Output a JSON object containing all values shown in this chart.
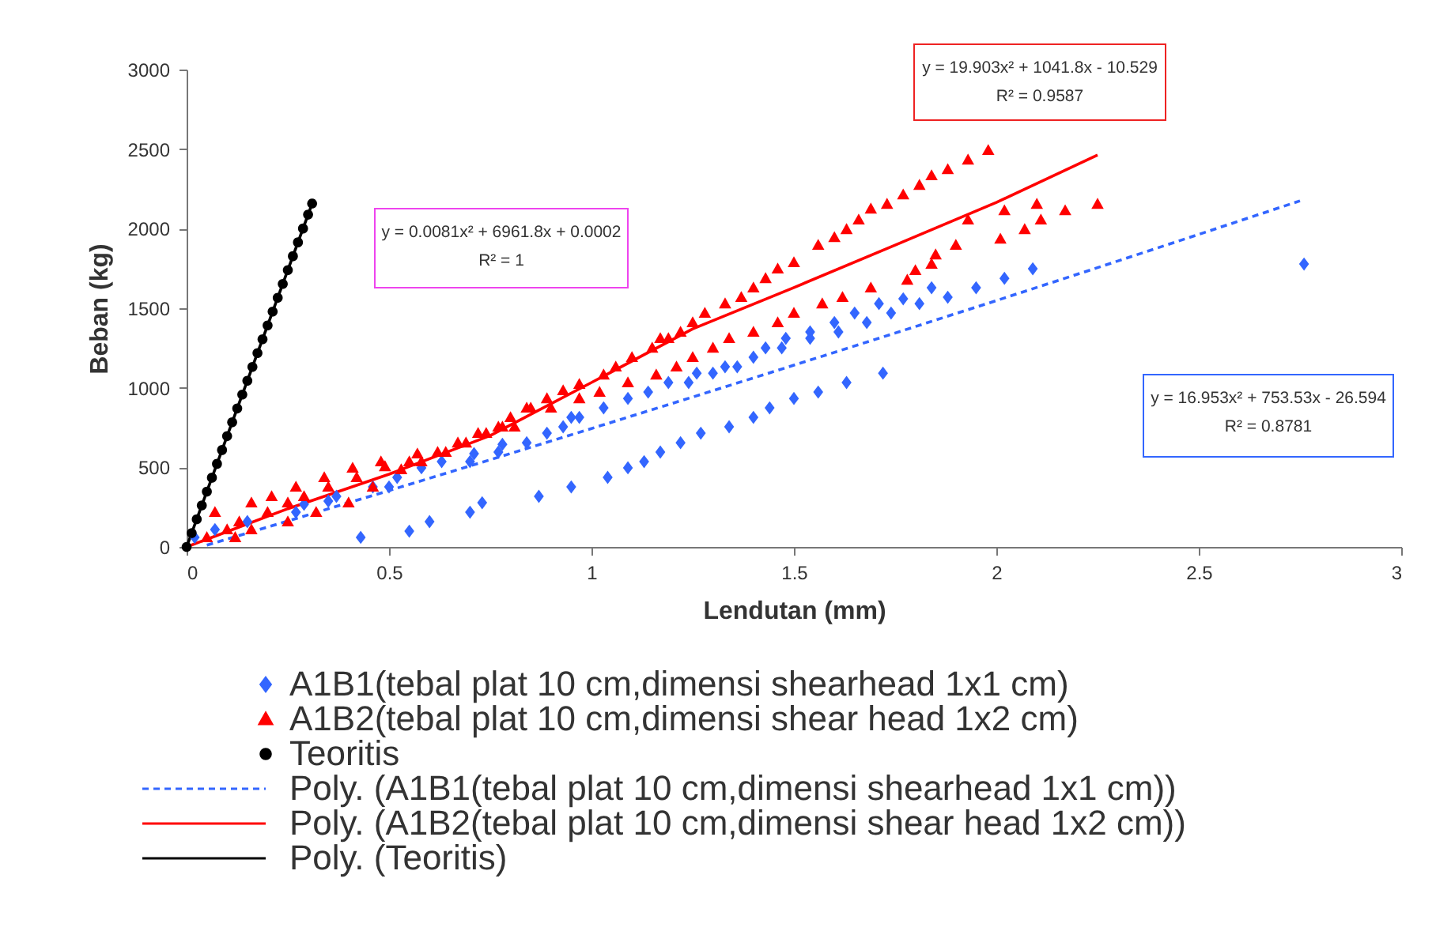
{
  "chart_data": {
    "type": "scatter",
    "xlabel": "Lendutan (mm)",
    "ylabel": "Beban (kg)",
    "xlim": [
      0,
      3
    ],
    "ylim": [
      0,
      3000
    ],
    "xticks": [
      0,
      0.5,
      1,
      1.5,
      2,
      2.5,
      3
    ],
    "yticks": [
      0,
      500,
      1000,
      1500,
      2000,
      2500,
      3000
    ],
    "grid": false,
    "legend": "bottom",
    "annotations": [
      "y = 0.0081x² + 6961.8x + 0.0002",
      "R² = 1",
      "y = 19.903x² + 1041.8x - 10.529",
      "R² = 0.9587",
      "y = 16.953x² + 753.53x - 26.594",
      "R² = 0.8781"
    ],
    "series": [
      {
        "name": "A1B1(tebal plat 10 cm,dimensi shearhead 1x1 cm)",
        "type": "scatter",
        "marker": "diamond",
        "color": "#3366ff",
        "x": [
          1.04,
          1.09,
          1.13,
          1.17,
          1.22,
          1.27,
          1.34,
          1.4,
          1.44,
          1.5,
          1.56,
          1.63,
          1.72,
          0.43,
          0.55,
          0.6,
          0.7,
          0.73,
          0.87,
          0.95,
          0.02,
          0.07,
          0.15,
          0.27,
          0.29,
          0.35,
          0.37,
          0.46,
          0.5,
          0.52,
          0.58,
          0.63,
          0.7,
          0.71,
          0.77,
          0.78,
          0.84,
          0.89,
          0.93,
          0.95,
          0.97,
          1.03,
          1.09,
          1.14,
          1.19,
          1.24,
          1.26,
          1.3,
          1.33,
          1.36,
          1.4,
          1.43,
          1.47,
          1.48,
          1.54,
          1.54,
          1.61,
          1.6,
          1.68,
          1.65,
          1.74,
          1.71,
          1.77,
          1.81,
          1.84,
          1.88,
          1.95,
          2.02,
          2.09,
          2.76
        ],
        "values": [
          437,
          497,
          536,
          596,
          655,
          715,
          755,
          814,
          874,
          933,
          973,
          1033,
          1092,
          60,
          99,
          159,
          218,
          278,
          318,
          377,
          60,
          109,
          159,
          218,
          268,
          288,
          318,
          377,
          377,
          437,
          497,
          536,
          536,
          586,
          596,
          645,
          655,
          715,
          755,
          814,
          814,
          874,
          933,
          973,
          1033,
          1033,
          1092,
          1092,
          1132,
          1132,
          1192,
          1251,
          1251,
          1311,
          1311,
          1351,
          1351,
          1410,
          1410,
          1470,
          1470,
          1529,
          1559,
          1529,
          1629,
          1569,
          1629,
          1688,
          1748,
          1778
        ]
      },
      {
        "name": "A1B2(tebal plat 10 cm,dimensi shear head 1x2 cm)",
        "type": "scatter",
        "marker": "triangle",
        "color": "#ff0000",
        "x": [
          0.05,
          0.07,
          0.1,
          0.12,
          0.13,
          0.16,
          0.16,
          0.2,
          0.21,
          0.25,
          0.25,
          0.27,
          0.29,
          0.32,
          0.34,
          0.35,
          0.4,
          0.41,
          0.42,
          0.46,
          0.48,
          0.49,
          0.53,
          0.55,
          0.57,
          0.58,
          0.62,
          0.64,
          0.67,
          0.69,
          0.72,
          0.74,
          0.77,
          0.78,
          0.8,
          0.81,
          0.84,
          0.85,
          0.89,
          0.9,
          0.93,
          0.97,
          0.97,
          1.02,
          1.03,
          1.06,
          1.09,
          1.1,
          1.15,
          1.16,
          1.17,
          1.19,
          1.21,
          1.22,
          1.25,
          1.25,
          1.28,
          1.3,
          1.33,
          1.34,
          1.37,
          1.4,
          1.4,
          1.43,
          1.46,
          1.46,
          1.5,
          1.5,
          1.56,
          1.57,
          1.6,
          1.62,
          1.63,
          1.66,
          1.69,
          1.69,
          1.73,
          1.77,
          1.78,
          1.8,
          1.81,
          1.84,
          1.84,
          1.85,
          1.88,
          1.9,
          1.93,
          1.93,
          1.98,
          2.01,
          2.02,
          2.07,
          2.1,
          2.11,
          2.17,
          2.25
        ],
        "values": [
          60,
          218,
          109,
          60,
          159,
          278,
          109,
          218,
          318,
          159,
          278,
          377,
          318,
          218,
          437,
          377,
          278,
          497,
          437,
          377,
          536,
          506,
          487,
          536,
          586,
          536,
          596,
          596,
          655,
          655,
          715,
          715,
          755,
          755,
          814,
          755,
          874,
          874,
          933,
          874,
          983,
          933,
          1023,
          973,
          1082,
          1132,
          1033,
          1192,
          1251,
          1082,
          1311,
          1311,
          1132,
          1351,
          1192,
          1410,
          1470,
          1251,
          1529,
          1311,
          1569,
          1351,
          1629,
          1688,
          1748,
          1410,
          1788,
          1470,
          1897,
          1529,
          1946,
          1569,
          1996,
          2056,
          1629,
          2125,
          2155,
          2214,
          1678,
          1738,
          2274,
          2334,
          1778,
          1837,
          2373,
          1897,
          2433,
          2056,
          2493,
          1936,
          2115,
          1996,
          2155,
          2056,
          2115,
          2155
        ]
      },
      {
        "name": "Teoritis",
        "type": "scatter",
        "marker": "circle",
        "color": "#000000",
        "x": [
          0,
          0.0125,
          0.025,
          0.0375,
          0.05,
          0.0625,
          0.075,
          0.0875,
          0.1,
          0.1125,
          0.125,
          0.1375,
          0.15,
          0.1625,
          0.175,
          0.1875,
          0.2,
          0.2125,
          0.225,
          0.2375,
          0.25,
          0.2625,
          0.275,
          0.2875,
          0.3,
          0.31
        ],
        "values": [
          0,
          87,
          174,
          261,
          348,
          435,
          522,
          609,
          696,
          783,
          870,
          957,
          1044,
          1131,
          1218,
          1305,
          1392,
          1479,
          1566,
          1653,
          1740,
          1827,
          1914,
          2001,
          2088,
          2158
        ]
      },
      {
        "name": "Poly. (A1B1(tebal plat 10 cm,dimensi shearhead 1x1 cm))",
        "type": "line",
        "line_style": "dashed",
        "color": "#3366ff",
        "x": [
          0.05,
          0.25,
          0.5,
          0.75,
          1,
          1.25,
          1.5,
          1.75,
          2,
          2.25,
          2.5,
          2.75
        ],
        "values": [
          11,
          163,
          354,
          548,
          744,
          942,
          1142,
          1344,
          1548,
          1755,
          1964,
          2175
        ]
      },
      {
        "name": "Poly. (A1B2(tebal plat 10 cm,dimensi shear head 1x2 cm))",
        "type": "line",
        "line_style": "solid",
        "color": "#ff0000",
        "x": [
          0,
          0.25,
          0.5,
          0.75,
          1,
          1.25,
          1.5,
          1.75,
          2,
          2.25
        ],
        "values": [
          0,
          240,
          457,
          700,
          1033,
          1370,
          1630,
          1897,
          2165,
          2463
        ]
      },
      {
        "name": "Poly. (Teoritis)",
        "type": "line",
        "line_style": "solid",
        "color": "#000000",
        "x": [
          0,
          0.31
        ],
        "values": [
          0,
          2158
        ]
      }
    ]
  }
}
